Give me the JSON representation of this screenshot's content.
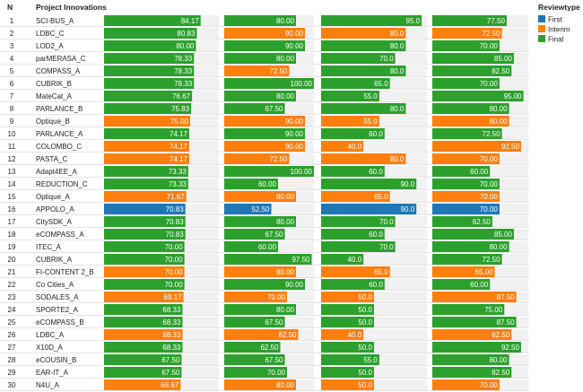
{
  "chart_data": {
    "type": "bar",
    "headers": {
      "n": "N",
      "project": "Project Innovations"
    },
    "legend": {
      "title": "Reviewtype",
      "position": "top-right",
      "items": [
        {
          "name": "First",
          "color": "#1f77b4"
        },
        {
          "name": "Interim",
          "color": "#ff7f0e"
        },
        {
          "name": "Final",
          "color": "#2ca02c"
        }
      ]
    },
    "colors": {
      "First": "#1f77b4",
      "Interim": "#ff7f0e",
      "Final": "#2ca02c",
      "track": "#f1f1f1"
    },
    "column_ranges": [
      [
        0,
        100
      ],
      [
        0,
        100
      ],
      [
        0,
        100
      ],
      [
        0,
        100
      ]
    ],
    "rows": [
      {
        "n": "1",
        "name": "SCI-BUS_A",
        "values": [
          84.17,
          80.0,
          95.0,
          77.5
        ],
        "types": [
          "Final",
          "Final",
          "Final",
          "Final"
        ],
        "labels": [
          "84.17",
          "80.00",
          "95.0",
          "77.50"
        ]
      },
      {
        "n": "2",
        "name": "LDBC_C",
        "values": [
          80.83,
          90.0,
          80.0,
          72.5
        ],
        "types": [
          "Final",
          "Interim",
          "Interim",
          "Interim"
        ],
        "labels": [
          "80.83",
          "90.00",
          "80.0",
          "72.50"
        ]
      },
      {
        "n": "3",
        "name": "LOD2_A",
        "values": [
          80.0,
          90.0,
          80.0,
          70.0
        ],
        "types": [
          "Final",
          "Final",
          "Final",
          "Final"
        ],
        "labels": [
          "80.00",
          "90.00",
          "80.0",
          "70.00"
        ]
      },
      {
        "n": "4",
        "name": "parMERASA_C",
        "values": [
          78.33,
          80.0,
          70.0,
          85.0
        ],
        "types": [
          "Final",
          "Final",
          "Final",
          "Final"
        ],
        "labels": [
          "78.33",
          "80.00",
          "70.0",
          "85.00"
        ]
      },
      {
        "n": "5",
        "name": "COMPASS_A",
        "values": [
          78.33,
          72.5,
          80.0,
          82.5
        ],
        "types": [
          "Final",
          "Interim",
          "Final",
          "Final"
        ],
        "labels": [
          "78.33",
          "72.50",
          "80.0",
          "82.50"
        ]
      },
      {
        "n": "6",
        "name": "CUBRIK_B",
        "values": [
          78.33,
          100.0,
          65.0,
          70.0
        ],
        "types": [
          "Final",
          "Final",
          "Final",
          "Final"
        ],
        "labels": [
          "78.33",
          "100.00",
          "65.0",
          "70.00"
        ]
      },
      {
        "n": "7",
        "name": "MateCat_A",
        "values": [
          76.67,
          80.0,
          55.0,
          95.0
        ],
        "types": [
          "Final",
          "Final",
          "Final",
          "Final"
        ],
        "labels": [
          "76.67",
          "80.00",
          "55.0",
          "95.00"
        ]
      },
      {
        "n": "8",
        "name": "PARLANCE_B",
        "values": [
          75.83,
          67.5,
          80.0,
          80.0
        ],
        "types": [
          "Final",
          "Final",
          "Final",
          "Final"
        ],
        "labels": [
          "75.83",
          "67.50",
          "80.0",
          "80.00"
        ]
      },
      {
        "n": "9",
        "name": "Optique_B",
        "values": [
          75.0,
          90.0,
          55.0,
          80.0
        ],
        "types": [
          "Interim",
          "Interim",
          "Interim",
          "Interim"
        ],
        "labels": [
          "75.00",
          "90.00",
          "55.0",
          "80.00"
        ]
      },
      {
        "n": "10",
        "name": "PARLANCE_A",
        "values": [
          74.17,
          90.0,
          60.0,
          72.5
        ],
        "types": [
          "Final",
          "Final",
          "Final",
          "Final"
        ],
        "labels": [
          "74.17",
          "90.00",
          "60.0",
          "72.50"
        ]
      },
      {
        "n": "11",
        "name": "COLOMBO_C",
        "values": [
          74.17,
          90.0,
          40.0,
          92.5
        ],
        "types": [
          "Interim",
          "Interim",
          "Interim",
          "Interim"
        ],
        "labels": [
          "74.17",
          "90.00",
          "40.0",
          "92.50"
        ]
      },
      {
        "n": "12",
        "name": "PASTA_C",
        "values": [
          74.17,
          72.5,
          80.0,
          70.0
        ],
        "types": [
          "Interim",
          "Interim",
          "Interim",
          "Interim"
        ],
        "labels": [
          "74.17",
          "72.50",
          "80.0",
          "70.00"
        ]
      },
      {
        "n": "13",
        "name": "Adapt4EE_A",
        "values": [
          73.33,
          100.0,
          60.0,
          60.0
        ],
        "types": [
          "Final",
          "Final",
          "Final",
          "Final"
        ],
        "labels": [
          "73.33",
          "100.00",
          "60.0",
          "60.00"
        ]
      },
      {
        "n": "14",
        "name": "REDUCTION_C",
        "values": [
          73.33,
          60.0,
          90.0,
          70.0
        ],
        "types": [
          "Final",
          "Final",
          "Final",
          "Final"
        ],
        "labels": [
          "73.33",
          "60.00",
          "90.0",
          "70.00"
        ]
      },
      {
        "n": "15",
        "name": "Optique_A",
        "values": [
          71.67,
          80.0,
          65.0,
          70.0
        ],
        "types": [
          "Interim",
          "Interim",
          "Interim",
          "Interim"
        ],
        "labels": [
          "71.67",
          "80.00",
          "65.0",
          "70.00"
        ]
      },
      {
        "n": "16",
        "name": "APPOLO_A",
        "values": [
          70.83,
          52.5,
          90.0,
          70.0
        ],
        "types": [
          "First",
          "First",
          "First",
          "First"
        ],
        "labels": [
          "70.83",
          "52.50",
          "90.0",
          "70.00"
        ]
      },
      {
        "n": "17",
        "name": "CitySDK_A",
        "values": [
          70.83,
          80.0,
          70.0,
          62.5
        ],
        "types": [
          "Final",
          "Final",
          "Final",
          "Final"
        ],
        "labels": [
          "70.83",
          "80.00",
          "70.0",
          "62.50"
        ]
      },
      {
        "n": "18",
        "name": "eCOMPASS_A",
        "values": [
          70.83,
          67.5,
          60.0,
          85.0
        ],
        "types": [
          "Final",
          "Final",
          "Final",
          "Final"
        ],
        "labels": [
          "70.83",
          "67.50",
          "60.0",
          "85.00"
        ]
      },
      {
        "n": "19",
        "name": "ITEC_A",
        "values": [
          70.0,
          60.0,
          70.0,
          80.0
        ],
        "types": [
          "Final",
          "Final",
          "Final",
          "Final"
        ],
        "labels": [
          "70.00",
          "60.00",
          "70.0",
          "80.00"
        ]
      },
      {
        "n": "20",
        "name": "CUBRIK_A",
        "values": [
          70.0,
          97.5,
          40.0,
          72.5
        ],
        "types": [
          "Final",
          "Final",
          "Final",
          "Final"
        ],
        "labels": [
          "70.00",
          "97.50",
          "40.0",
          "72.50"
        ]
      },
      {
        "n": "21",
        "name": "FI-CONTENT 2_B",
        "values": [
          70.0,
          80.0,
          65.0,
          65.0
        ],
        "types": [
          "Interim",
          "Interim",
          "Interim",
          "Interim"
        ],
        "labels": [
          "70.00",
          "80.00",
          "65.0",
          "65.00"
        ]
      },
      {
        "n": "22",
        "name": "Co Cities_A",
        "values": [
          70.0,
          90.0,
          60.0,
          60.0
        ],
        "types": [
          "Final",
          "Final",
          "Final",
          "Final"
        ],
        "labels": [
          "70.00",
          "90.00",
          "60.0",
          "60.00"
        ]
      },
      {
        "n": "23",
        "name": "SODALES_A",
        "values": [
          69.17,
          70.0,
          50.0,
          87.5
        ],
        "types": [
          "Interim",
          "Interim",
          "Interim",
          "Interim"
        ],
        "labels": [
          "69.17",
          "70.00",
          "50.0",
          "87.50"
        ]
      },
      {
        "n": "24",
        "name": "SPORTE2_A",
        "values": [
          68.33,
          80.0,
          50.0,
          75.0
        ],
        "types": [
          "Final",
          "Final",
          "Final",
          "Final"
        ],
        "labels": [
          "68.33",
          "80.00",
          "50.0",
          "75.00"
        ]
      },
      {
        "n": "25",
        "name": "eCOMPASS_B",
        "values": [
          68.33,
          67.5,
          50.0,
          87.5
        ],
        "types": [
          "Final",
          "Final",
          "Final",
          "Final"
        ],
        "labels": [
          "68.33",
          "67.50",
          "50.0",
          "87.50"
        ]
      },
      {
        "n": "26",
        "name": "LDBC_A",
        "values": [
          68.33,
          82.5,
          40.0,
          82.5
        ],
        "types": [
          "Interim",
          "Interim",
          "Interim",
          "Interim"
        ],
        "labels": [
          "68.33",
          "82.50",
          "40.0",
          "82.50"
        ]
      },
      {
        "n": "27",
        "name": "X10D_A",
        "values": [
          68.33,
          62.5,
          50.0,
          92.5
        ],
        "types": [
          "Final",
          "Final",
          "Final",
          "Final"
        ],
        "labels": [
          "68.33",
          "62.50",
          "50.0",
          "92.50"
        ]
      },
      {
        "n": "28",
        "name": "eCOUSIN_B",
        "values": [
          67.5,
          67.5,
          55.0,
          80.0
        ],
        "types": [
          "Final",
          "Final",
          "Final",
          "Final"
        ],
        "labels": [
          "67.50",
          "67.50",
          "55.0",
          "80.00"
        ]
      },
      {
        "n": "29",
        "name": "EAR-IT_A",
        "values": [
          67.5,
          70.0,
          50.0,
          82.5
        ],
        "types": [
          "Final",
          "Final",
          "Final",
          "Final"
        ],
        "labels": [
          "67.50",
          "70.00",
          "50.0",
          "82.50"
        ]
      },
      {
        "n": "30",
        "name": "N4U_A",
        "values": [
          66.67,
          80.0,
          50.0,
          70.0
        ],
        "types": [
          "Interim",
          "Interim",
          "Interim",
          "Interim"
        ],
        "labels": [
          "66.67",
          "80.00",
          "50.0",
          "70.00"
        ]
      }
    ]
  }
}
